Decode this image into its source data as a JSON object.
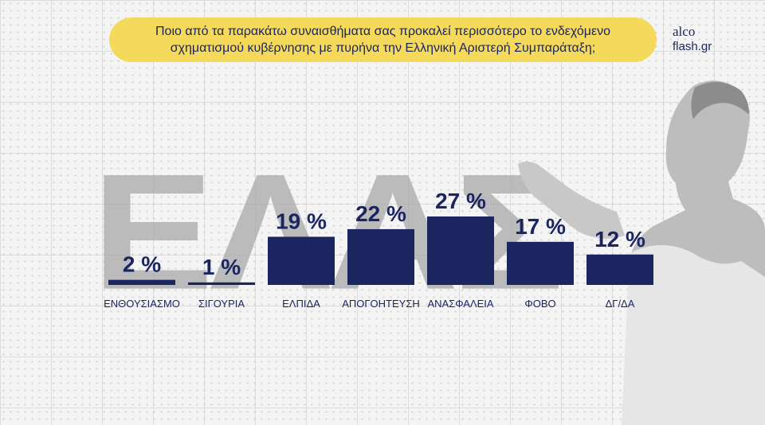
{
  "question": {
    "line1": "Ποιο από τα παρακάτω συναισθήματα σας προκαλεί περισσότερο το ενδεχόμενο",
    "line2": "σχηματισμού κυβέρνησης με πυρήνα την Ελληνική Αριστερή Συμπαράταξη;"
  },
  "logo": {
    "line1": "alco",
    "line2": "flash.gr"
  },
  "backdrop_text": "ΕΛΑΣ",
  "colors": {
    "bar": "#1b2660",
    "accent": "#f5d95b",
    "backdrop": "#a9a9a9"
  },
  "chart_data": {
    "type": "bar",
    "categories": [
      "ΕΝΘΟΥΣΙΑΣΜΟ",
      "ΣΙΓΟΥΡΙΑ",
      "ΕΛΠΙΔΑ",
      "ΑΠΟΓΟΗΤΕΥΣΗ",
      "ΑΝΑΣΦΑΛΕΙΑ",
      "ΦΟΒΟ",
      "ΔΓ/ΔΑ"
    ],
    "values": [
      2,
      1,
      19,
      22,
      27,
      17,
      12
    ],
    "value_labels": [
      "2 %",
      "1 %",
      "19 %",
      "22 %",
      "27 %",
      "17 %",
      "12 %"
    ],
    "title": "",
    "xlabel": "",
    "ylabel": "",
    "ylim": [
      0,
      27
    ],
    "grid": false,
    "legend": "none"
  }
}
